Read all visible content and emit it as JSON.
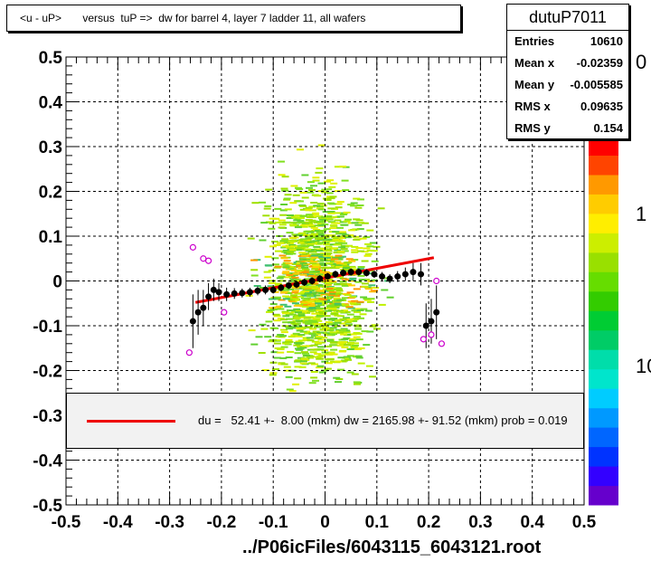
{
  "title": "<u - uP>       versus  tuP =>  dw for barrel 4, layer 7 ladder 11, all wafers",
  "stats": {
    "name": "dutuP7011",
    "rows": [
      {
        "label": "Entries",
        "value": "10610"
      },
      {
        "label": "Mean x",
        "value": "-0.02359"
      },
      {
        "label": "Mean y",
        "value": "-0.005585"
      },
      {
        "label": "RMS x",
        "value": "0.09635"
      },
      {
        "label": "RMS y",
        "value": "0.154"
      }
    ]
  },
  "fit_legend": "du =   52.41 +-  8.00 (mkm) dw = 2165.98 +- 91.52 (mkm) prob = 0.019",
  "footer": "../P06icFiles/6043115_6043121.root",
  "colors": {
    "fit_line": "#ee0000",
    "profile_points": "#000000",
    "open_points": "#cc00cc"
  },
  "chart_data": {
    "type": "scatter",
    "xlim": [
      -0.5,
      0.5
    ],
    "ylim": [
      -0.5,
      0.5
    ],
    "x_ticks": [
      "-0.5",
      "-0.4",
      "-0.3",
      "-0.2",
      "-0.1",
      "0",
      "0.1",
      "0.2",
      "0.3",
      "0.4",
      "0.5"
    ],
    "y_ticks": [
      "-0.5",
      "-0.4",
      "-0.3",
      "-0.2",
      "-0.1",
      "0",
      "0.1",
      "0.2",
      "0.3",
      "0.4",
      "0.5"
    ],
    "grid": true,
    "z_scale_labels": [
      "0",
      "1",
      "10"
    ],
    "fit_line": {
      "x": [
        -0.25,
        0.21
      ],
      "y": [
        -0.048,
        0.052
      ]
    },
    "profile_points": [
      {
        "x": -0.255,
        "y": -0.09,
        "err": 0.06
      },
      {
        "x": -0.245,
        "y": -0.07,
        "err": 0.05
      },
      {
        "x": -0.235,
        "y": -0.06,
        "err": 0.04
      },
      {
        "x": -0.225,
        "y": -0.035,
        "err": 0.03
      },
      {
        "x": -0.215,
        "y": -0.02,
        "err": 0.025
      },
      {
        "x": -0.205,
        "y": -0.025,
        "err": 0.02
      },
      {
        "x": -0.19,
        "y": -0.03,
        "err": 0.015
      },
      {
        "x": -0.175,
        "y": -0.028,
        "err": 0.012
      },
      {
        "x": -0.16,
        "y": -0.027,
        "err": 0.01
      },
      {
        "x": -0.145,
        "y": -0.025,
        "err": 0.01
      },
      {
        "x": -0.13,
        "y": -0.022,
        "err": 0.01
      },
      {
        "x": -0.115,
        "y": -0.02,
        "err": 0.01
      },
      {
        "x": -0.1,
        "y": -0.02,
        "err": 0.008
      },
      {
        "x": -0.085,
        "y": -0.015,
        "err": 0.008
      },
      {
        "x": -0.07,
        "y": -0.01,
        "err": 0.008
      },
      {
        "x": -0.055,
        "y": -0.008,
        "err": 0.008
      },
      {
        "x": -0.04,
        "y": -0.003,
        "err": 0.008
      },
      {
        "x": -0.025,
        "y": 0.0,
        "err": 0.008
      },
      {
        "x": -0.01,
        "y": 0.005,
        "err": 0.008
      },
      {
        "x": 0.005,
        "y": 0.01,
        "err": 0.008
      },
      {
        "x": 0.02,
        "y": 0.015,
        "err": 0.008
      },
      {
        "x": 0.035,
        "y": 0.018,
        "err": 0.008
      },
      {
        "x": 0.05,
        "y": 0.02,
        "err": 0.008
      },
      {
        "x": 0.065,
        "y": 0.02,
        "err": 0.008
      },
      {
        "x": 0.08,
        "y": 0.018,
        "err": 0.008
      },
      {
        "x": 0.095,
        "y": 0.015,
        "err": 0.008
      },
      {
        "x": 0.11,
        "y": 0.01,
        "err": 0.01
      },
      {
        "x": 0.125,
        "y": 0.005,
        "err": 0.01
      },
      {
        "x": 0.14,
        "y": 0.01,
        "err": 0.012
      },
      {
        "x": 0.155,
        "y": 0.015,
        "err": 0.015
      },
      {
        "x": 0.17,
        "y": 0.02,
        "err": 0.02
      },
      {
        "x": 0.185,
        "y": 0.015,
        "err": 0.025
      },
      {
        "x": 0.195,
        "y": -0.1,
        "err": 0.05
      },
      {
        "x": 0.205,
        "y": -0.09,
        "err": 0.05
      },
      {
        "x": 0.215,
        "y": -0.07,
        "err": 0.06
      }
    ],
    "open_points": [
      {
        "x": -0.262,
        "y": -0.16
      },
      {
        "x": -0.255,
        "y": 0.075
      },
      {
        "x": -0.235,
        "y": 0.05
      },
      {
        "x": -0.225,
        "y": 0.045
      },
      {
        "x": -0.195,
        "y": -0.07
      },
      {
        "x": 0.19,
        "y": -0.13
      },
      {
        "x": 0.205,
        "y": -0.12
      },
      {
        "x": 0.215,
        "y": 0.0
      },
      {
        "x": 0.225,
        "y": -0.14
      }
    ]
  }
}
